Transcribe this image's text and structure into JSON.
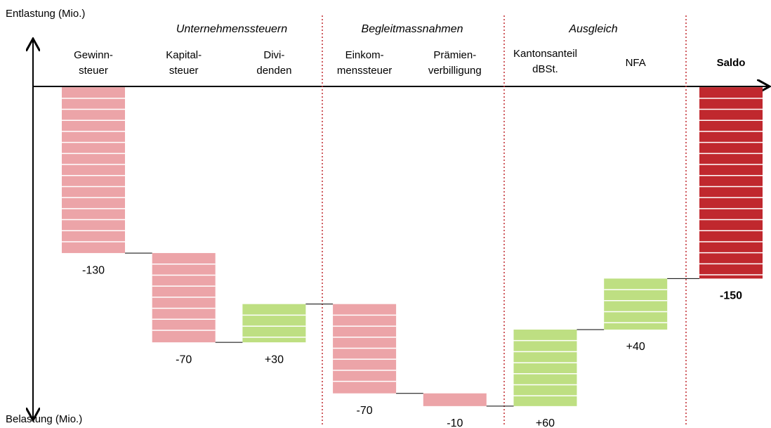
{
  "chart_data": {
    "type": "waterfall",
    "y_label_top": "Entlastung (Mio.)",
    "y_label_bottom": "Belastung (Mio.)",
    "groups": [
      "Unternehmenssteuern",
      "Begleitmassnahmen",
      "Ausgleich"
    ],
    "categories": [
      [
        "Gewinn-",
        "steuer"
      ],
      [
        "Kapital-",
        "steuer"
      ],
      [
        "Divi-",
        "denden"
      ],
      [
        "Einkom-",
        "menssteuer"
      ],
      [
        "Prämien-",
        "verbilligung"
      ],
      [
        "Kantonsanteil",
        "dBSt."
      ],
      [
        "NFA"
      ],
      [
        "Saldo"
      ]
    ],
    "values": [
      -130,
      -70,
      30,
      -70,
      -10,
      60,
      40,
      -150
    ],
    "value_labels": [
      "-130",
      "-70",
      "+30",
      "-70",
      "-10",
      "+60",
      "+40",
      "-150"
    ],
    "is_total": [
      false,
      false,
      false,
      false,
      false,
      false,
      false,
      true
    ],
    "colors": [
      "#eca4a8",
      "#eca4a8",
      "#bedf82",
      "#eca4a8",
      "#eca4a8",
      "#bedf82",
      "#bedf82",
      "#c0282e"
    ],
    "ylim": [
      -260,
      37
    ]
  }
}
